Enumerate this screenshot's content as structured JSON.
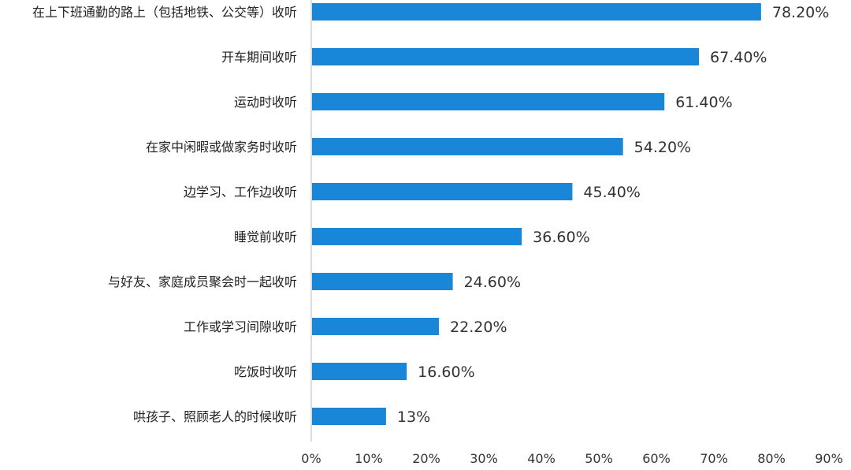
{
  "chart_data": {
    "type": "bar",
    "orientation": "horizontal",
    "categories": [
      "在上下班通勤的路上（包括地铁、公交等）收听",
      "开车期间收听",
      "运动时收听",
      "在家中闲暇或做家务时收听",
      "边学习、工作边收听",
      "睡觉前收听",
      "与好友、家庭成员聚会时一起收听",
      "工作或学习间隙收听",
      "吃饭时收听",
      "哄孩子、照顾老人的时候收听"
    ],
    "values": [
      78.2,
      67.4,
      61.4,
      54.2,
      45.4,
      36.6,
      24.6,
      22.2,
      16.6,
      13
    ],
    "value_labels": [
      "78.20%",
      "67.40%",
      "61.40%",
      "54.20%",
      "45.40%",
      "36.60%",
      "24.60%",
      "22.20%",
      "16.60%",
      "13%"
    ],
    "xticks": [
      0,
      10,
      20,
      30,
      40,
      50,
      60,
      70,
      80,
      90
    ],
    "xtick_labels": [
      "0%",
      "10%",
      "20%",
      "30%",
      "40%",
      "50%",
      "60%",
      "70%",
      "80%",
      "90%"
    ],
    "xlim": [
      0,
      90
    ],
    "title": "",
    "xlabel": "",
    "ylabel": "",
    "grid": false,
    "legend": "none",
    "bar_color": "#1a86d8",
    "axis_color": "#d0d0d0"
  }
}
